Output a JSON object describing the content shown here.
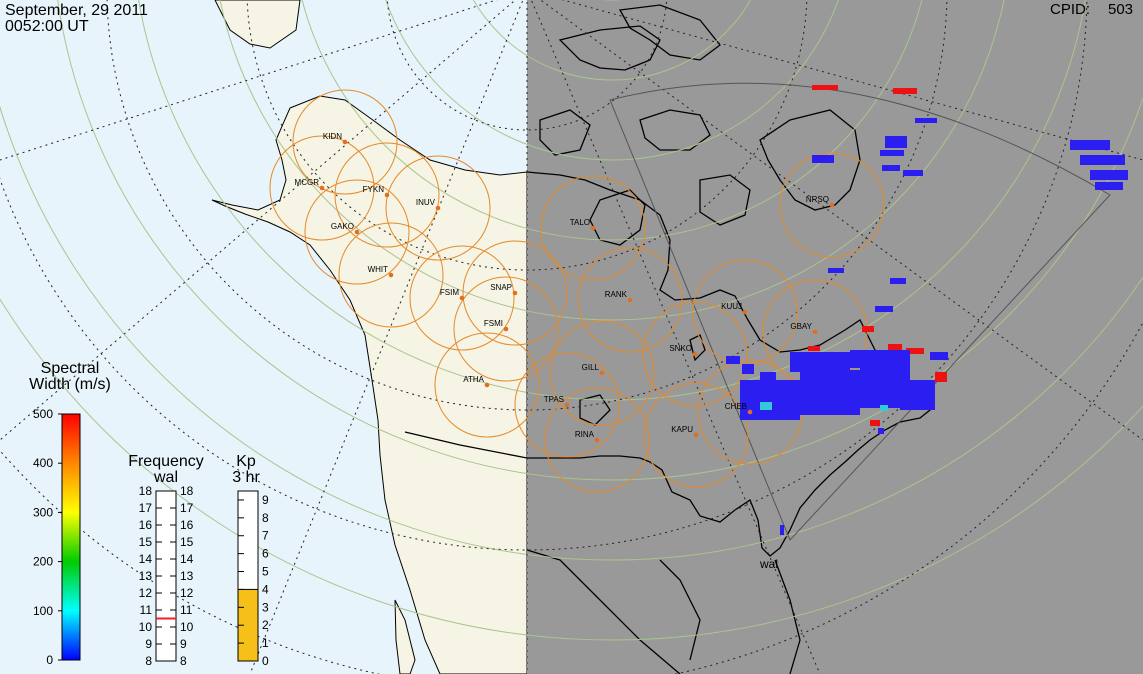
{
  "header": {
    "date": "September, 29 2011",
    "time": "0052:00 UT",
    "cpid_label": "CPID:",
    "cpid_value": "503"
  },
  "map": {
    "radar_sites": [
      "KIDN",
      "MCGR",
      "FYKN",
      "INUV",
      "GAKO",
      "WHIT",
      "FSIM",
      "SNAP",
      "FSMI",
      "ATHA",
      "TALO",
      "RANK",
      "GILL",
      "TPAS",
      "RINA",
      "SNKO",
      "KAPU",
      "KUUJ",
      "GBAY",
      "CHEB",
      "NRSQ"
    ],
    "active_radar_label": "wal",
    "colors": {
      "ocean_day": "#e8f4fb",
      "land_day": "#f6f4e4",
      "night": "#999999",
      "fov_circle": "#e58a2a",
      "station_dot": "#e07020",
      "scatter_main": "#2a1ff0",
      "scatter_edge": "#ee1111"
    }
  },
  "colorbar": {
    "title_line1": "Spectral",
    "title_line2": "Width (m/s)",
    "ticks": [
      "500",
      "400",
      "300",
      "200",
      "100",
      "0"
    ]
  },
  "frequency": {
    "title": "Frequency",
    "radar": "wal",
    "ticks_left": [
      "18",
      "17",
      "16",
      "15",
      "14",
      "13",
      "12",
      "11",
      "10",
      "9",
      "8"
    ],
    "ticks_right": [
      "18",
      "17",
      "16",
      "15",
      "14",
      "13",
      "12",
      "11",
      "10",
      "9",
      "8"
    ],
    "value_mhz": 10.5
  },
  "kp": {
    "title": "Kp",
    "subtitle": "3 hr",
    "ticks": [
      "9",
      "8",
      "7",
      "6",
      "5",
      "4",
      "3",
      "2",
      "1",
      "0"
    ],
    "value": 4
  }
}
